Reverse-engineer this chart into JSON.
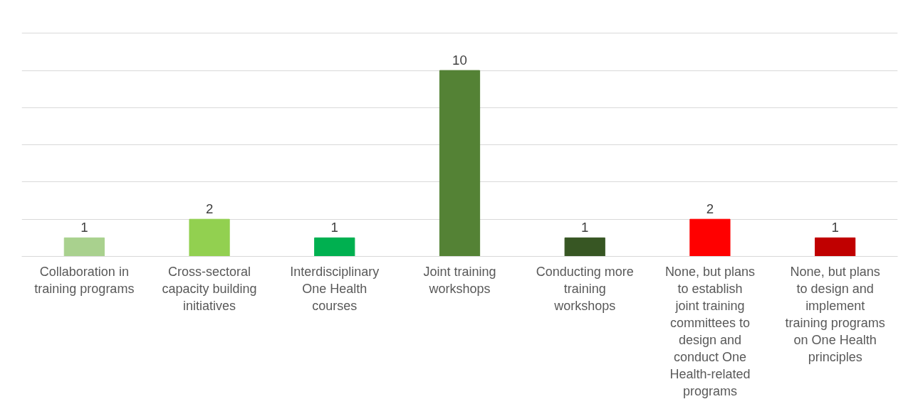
{
  "chart_data": {
    "type": "bar",
    "categories": [
      "Collaboration in training programs",
      "Cross-sectoral capacity building initiatives",
      "Interdisciplinary One Health courses",
      "Joint training workshops",
      "Conducting more training workshops",
      "None, but plans to establish joint training committees to design and conduct One Health-related programs",
      "None, but plans to design and implement training programs on One Health principles"
    ],
    "values": [
      1,
      2,
      1,
      10,
      1,
      2,
      1
    ],
    "colors": [
      "#a9d18e",
      "#92d050",
      "#00b050",
      "#548235",
      "#375623",
      "#ff0000",
      "#c00000"
    ],
    "yticks": [
      {
        "value": 0,
        "label": null
      },
      {
        "value": 2,
        "label": null
      },
      {
        "value": 4,
        "label": null
      },
      {
        "value": 6,
        "label": null
      },
      {
        "value": 8,
        "label": null
      },
      {
        "value": 10,
        "label": null
      },
      {
        "value": 12,
        "label": null
      }
    ],
    "tick_labels": "x",
    "grid": "y",
    "data_labels": true
  }
}
